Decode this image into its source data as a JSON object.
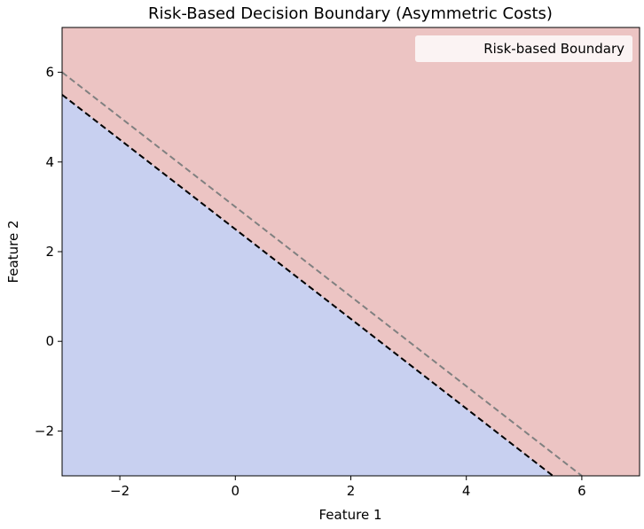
{
  "chart_data": {
    "type": "area",
    "title": "Risk-Based Decision Boundary (Asymmetric Costs)",
    "xlabel": "Feature 1",
    "ylabel": "Feature 2",
    "xlim": [
      -3,
      7
    ],
    "ylim": [
      -3,
      7
    ],
    "x_ticks": [
      -2,
      0,
      2,
      4,
      6
    ],
    "y_ticks": [
      -2,
      0,
      2,
      4,
      6
    ],
    "x_tick_labels": [
      "−2",
      "0",
      "2",
      "4",
      "6"
    ],
    "y_tick_labels": [
      "−2",
      "0",
      "2",
      "4",
      "6"
    ],
    "regions": [
      {
        "name": "below-boundary",
        "color": "#c8d0f0"
      },
      {
        "name": "above-boundary",
        "color": "#ecc4c3"
      }
    ],
    "series": [
      {
        "name": "Risk-based Boundary",
        "style": "dashed",
        "color": "#000000",
        "x": [
          -3,
          5.5
        ],
        "y": [
          5.5,
          -3
        ]
      },
      {
        "style": "dashed",
        "color": "#808080",
        "x": [
          -3,
          6
        ],
        "y": [
          6,
          -3
        ]
      }
    ],
    "grid": false,
    "legend": {
      "position": "top-right",
      "entries": [
        "Risk-based Boundary"
      ]
    }
  }
}
